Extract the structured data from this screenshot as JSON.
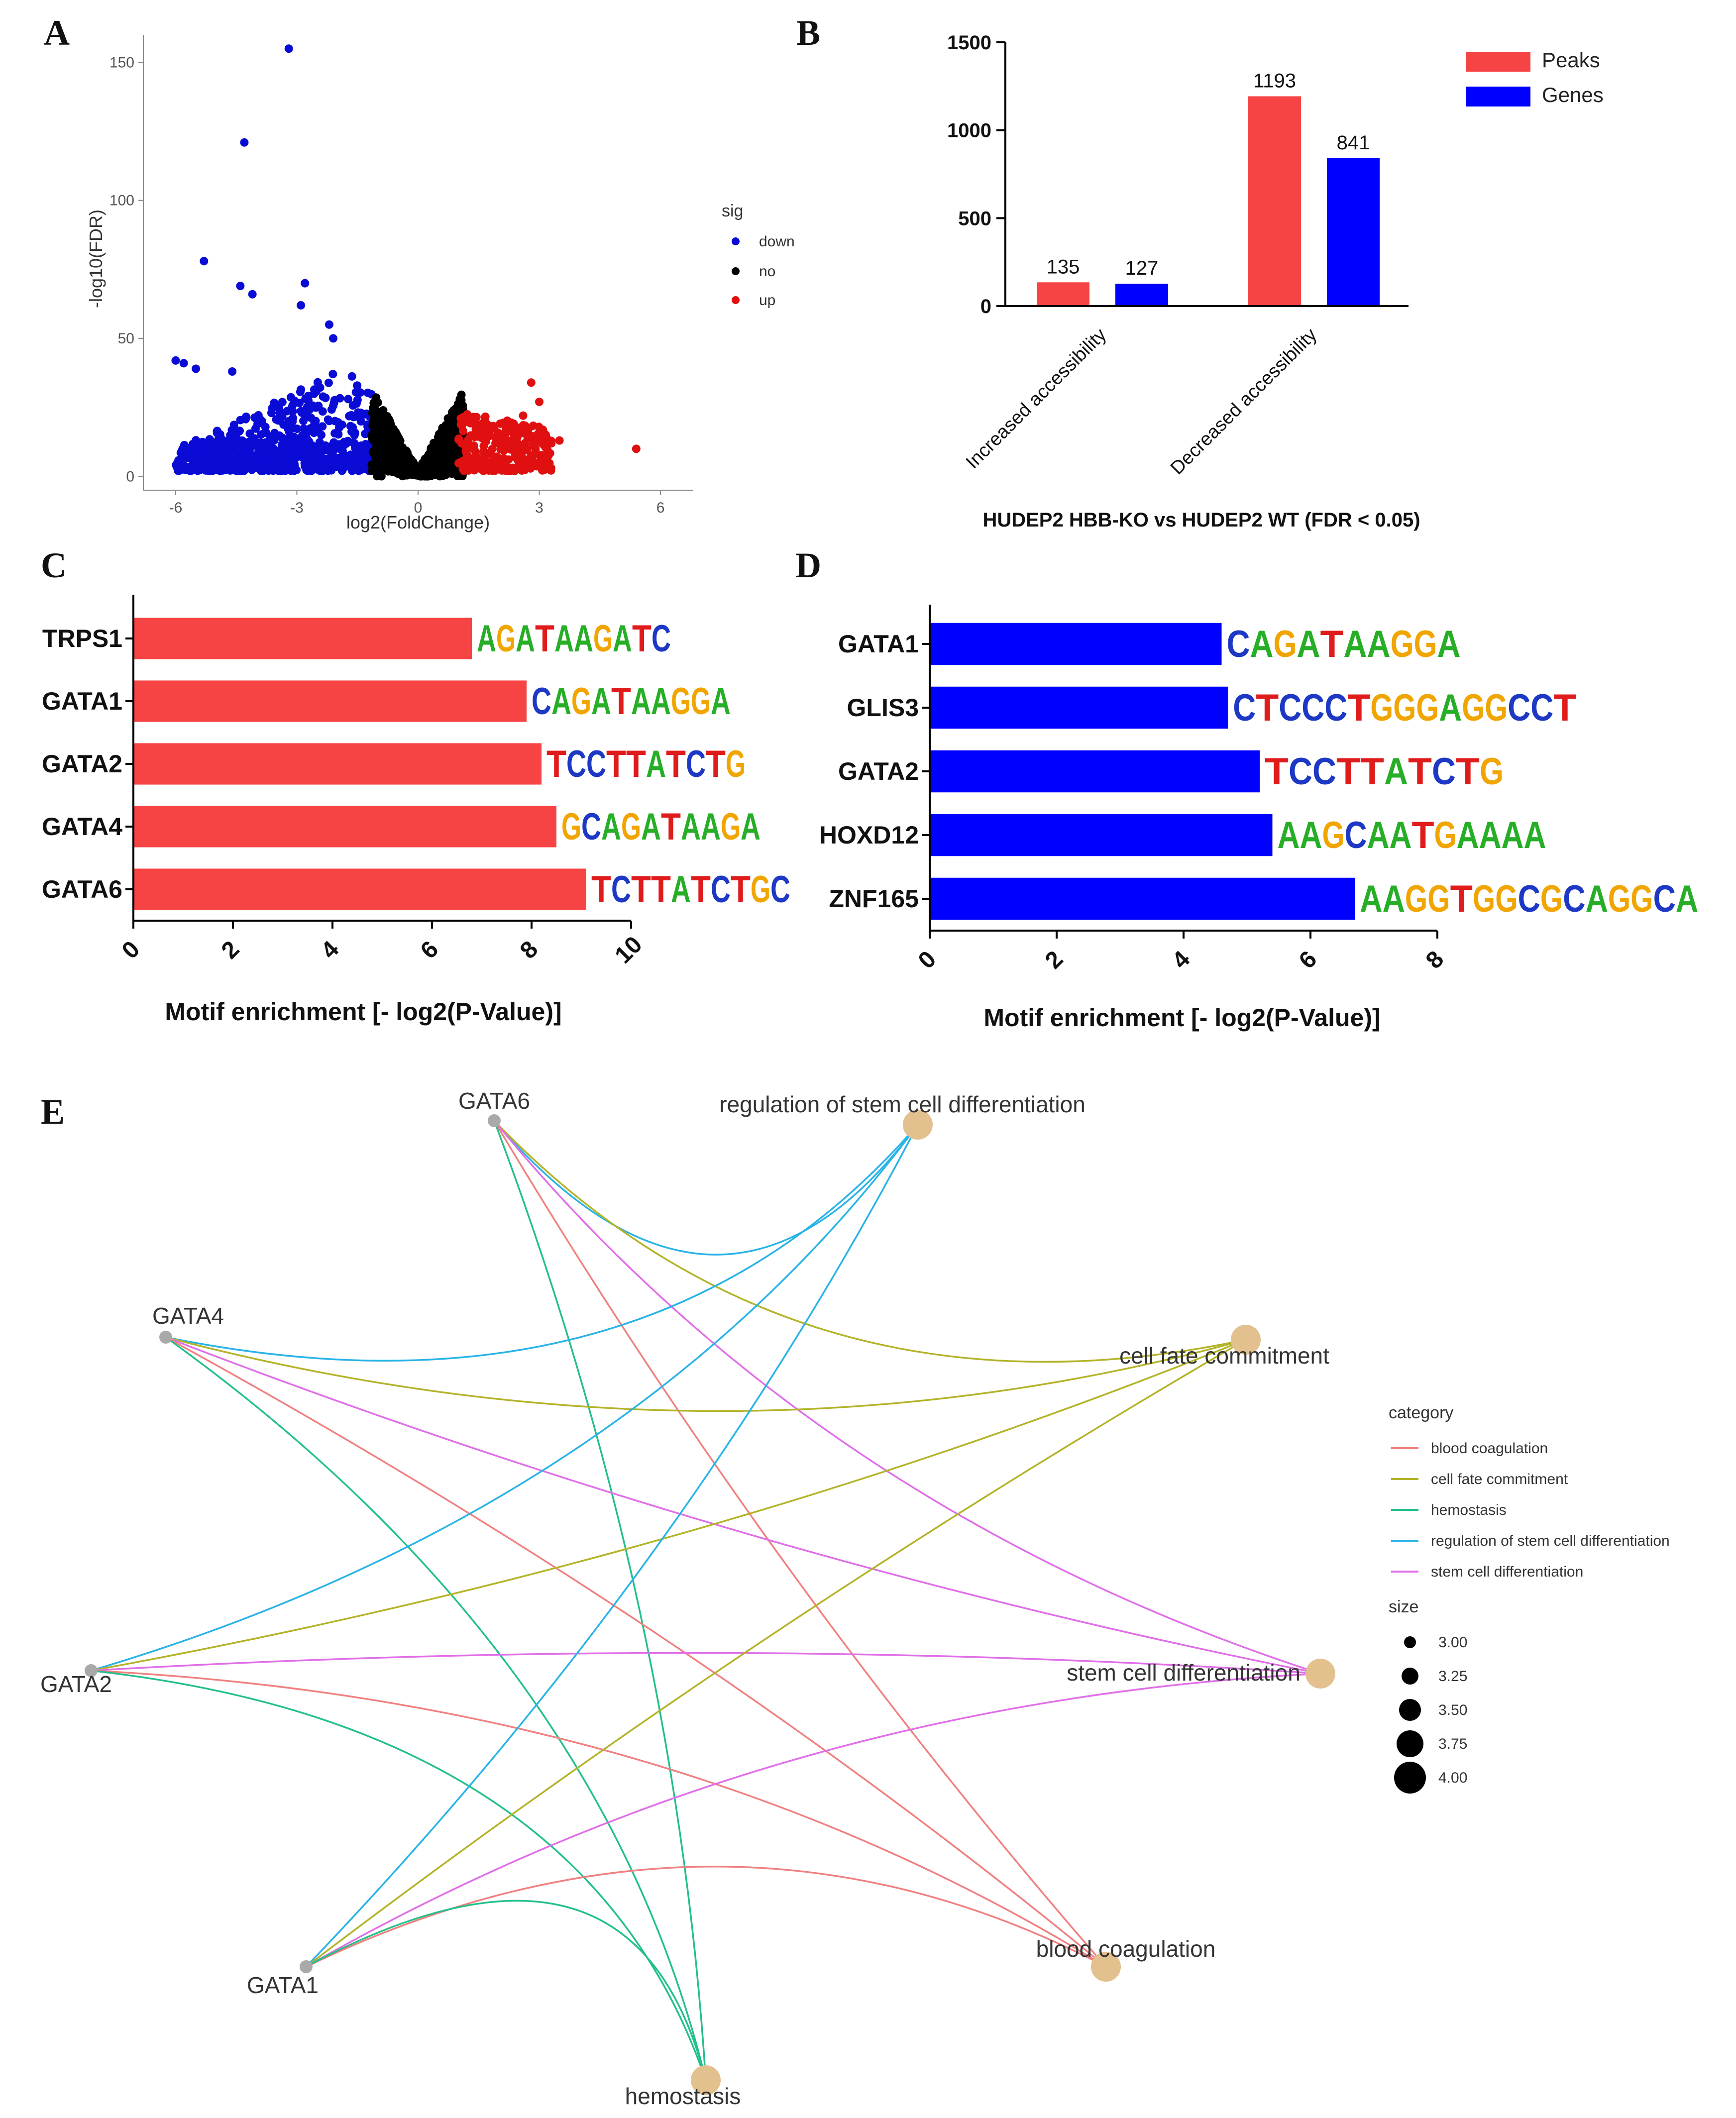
{
  "panels": [
    "A",
    "B",
    "C",
    "D",
    "E"
  ],
  "colors": {
    "down": "#0b0bd6",
    "no": "#000000",
    "up": "#e01010",
    "peaks": "#f64343",
    "genes": "#0000ff",
    "motifA": "#27ae27",
    "motifC": "#1d38c4",
    "motifG": "#f0a500",
    "motifT": "#e01b1b"
  },
  "chart_data": [
    {
      "panel": "A",
      "type": "scatter",
      "title": "",
      "xlabel": "log2(FoldChange)",
      "ylabel": "-log10(FDR)",
      "xlim": [
        -6.8,
        6.8
      ],
      "ylim": [
        -5,
        160
      ],
      "xticks": [
        -6,
        -3,
        0,
        3,
        6
      ],
      "xtick_labels": [
        "-6",
        "-3",
        "0",
        "3",
        "6"
      ],
      "yticks": [
        0,
        50,
        100,
        150
      ],
      "ytick_labels": [
        "0",
        "50",
        "100",
        "150"
      ],
      "legend_title": "sig",
      "legend": [
        {
          "name": "down",
          "color": "#0b0bd6"
        },
        {
          "name": "no",
          "color": "#000000"
        },
        {
          "name": "up",
          "color": "#e01010"
        }
      ],
      "points": {
        "down_outliers": [
          [
            -3.2,
            155
          ],
          [
            -4.3,
            121
          ],
          [
            -5.3,
            78
          ],
          [
            -4.4,
            69
          ],
          [
            -2.8,
            70
          ],
          [
            -4.1,
            66
          ],
          [
            -2.9,
            62
          ],
          [
            -5.8,
            41
          ],
          [
            -5.5,
            39
          ],
          [
            -6.0,
            42
          ],
          [
            -4.6,
            38
          ],
          [
            -2.2,
            55
          ],
          [
            -2.1,
            50
          ]
        ],
        "up_outliers": [
          [
            5.4,
            10
          ],
          [
            2.8,
            34
          ],
          [
            3.0,
            27
          ],
          [
            3.2,
            13
          ],
          [
            3.3,
            12
          ],
          [
            3.5,
            13
          ],
          [
            2.6,
            22
          ],
          [
            2.2,
            20
          ]
        ]
      }
    },
    {
      "panel": "B",
      "type": "bar",
      "title": "HUDEP2 HBB-KO vs HUDEP2 WT (FDR < 0.05)",
      "categories": [
        "Increased accessibility",
        "Decreased accessibility"
      ],
      "series": [
        {
          "name": "Peaks",
          "color": "#f64343",
          "values": [
            135,
            1193
          ]
        },
        {
          "name": "Genes",
          "color": "#0000ff",
          "values": [
            127,
            841
          ]
        }
      ],
      "value_labels": [
        "135",
        "127",
        "1193",
        "841"
      ],
      "ylim": [
        0,
        1500
      ],
      "yticks": [
        0,
        500,
        1000,
        1500
      ],
      "ytick_labels": [
        "0",
        "500",
        "1000",
        "1500"
      ]
    },
    {
      "panel": "C",
      "type": "bar",
      "orientation": "horizontal",
      "xlabel": "Motif enrichment [- log2(P-Value)]",
      "categories": [
        "TRPS1",
        "GATA1",
        "GATA2",
        "GATA4",
        "GATA6"
      ],
      "values": [
        6.8,
        7.9,
        8.2,
        8.5,
        9.1
      ],
      "motifs": [
        "AGATAAGATC",
        "CAGATAAGGA",
        "TCCTTATCTG",
        "GCAGATAAGA",
        "TCTTATCTGC"
      ],
      "xlim": [
        0,
        10
      ],
      "xticks": [
        0,
        2,
        4,
        6,
        8,
        10
      ],
      "xtick_labels": [
        "0",
        "2",
        "4",
        "6",
        "8",
        "10"
      ],
      "color": "#f64343"
    },
    {
      "panel": "D",
      "type": "bar",
      "orientation": "horizontal",
      "xlabel": "Motif enrichment [- log2(P-Value)]",
      "categories": [
        "GATA1",
        "GLIS3",
        "GATA2",
        "HOXD12",
        "ZNF165"
      ],
      "values": [
        4.6,
        4.7,
        5.2,
        5.4,
        6.7
      ],
      "motifs": [
        "CAGATAAGGA",
        "CTCCCTGGGAGGCCT",
        "TCCTTATCTG",
        "AAGCAATGAAAA",
        "AAGGTGGCGCAGGCA"
      ],
      "xlim": [
        0,
        8
      ],
      "xticks": [
        0,
        2,
        4,
        6,
        8
      ],
      "xtick_labels": [
        "0",
        "2",
        "4",
        "6",
        "8"
      ],
      "color": "#0000ff"
    },
    {
      "panel": "E",
      "type": "network",
      "gene_nodes": [
        "GATA6",
        "GATA4",
        "GATA2",
        "GATA1"
      ],
      "category_nodes": [
        {
          "name": "regulation of stem cell differentiation",
          "size": 4.0
        },
        {
          "name": "cell fate commitment",
          "size": 4.0
        },
        {
          "name": "stem cell differentiation",
          "size": 4.0
        },
        {
          "name": "blood coagulation",
          "size": 4.0
        },
        {
          "name": "hemostasis",
          "size": 4.0
        }
      ],
      "edges": [
        {
          "gene": "GATA6",
          "category": "regulation of stem cell differentiation"
        },
        {
          "gene": "GATA6",
          "category": "cell fate commitment"
        },
        {
          "gene": "GATA6",
          "category": "stem cell differentiation"
        },
        {
          "gene": "GATA6",
          "category": "blood coagulation"
        },
        {
          "gene": "GATA6",
          "category": "hemostasis"
        },
        {
          "gene": "GATA4",
          "category": "regulation of stem cell differentiation"
        },
        {
          "gene": "GATA4",
          "category": "cell fate commitment"
        },
        {
          "gene": "GATA4",
          "category": "stem cell differentiation"
        },
        {
          "gene": "GATA4",
          "category": "blood coagulation"
        },
        {
          "gene": "GATA4",
          "category": "hemostasis"
        },
        {
          "gene": "GATA2",
          "category": "regulation of stem cell differentiation"
        },
        {
          "gene": "GATA2",
          "category": "cell fate commitment"
        },
        {
          "gene": "GATA2",
          "category": "stem cell differentiation"
        },
        {
          "gene": "GATA2",
          "category": "blood coagulation"
        },
        {
          "gene": "GATA2",
          "category": "hemostasis"
        },
        {
          "gene": "GATA1",
          "category": "regulation of stem cell differentiation"
        },
        {
          "gene": "GATA1",
          "category": "cell fate commitment"
        },
        {
          "gene": "GATA1",
          "category": "stem cell differentiation"
        },
        {
          "gene": "GATA1",
          "category": "blood coagulation"
        },
        {
          "gene": "GATA1",
          "category": "hemostasis"
        }
      ],
      "legend_title": "category",
      "legend": [
        {
          "name": "blood coagulation",
          "color": "#f08080"
        },
        {
          "name": "cell fate commitment",
          "color": "#b3b329"
        },
        {
          "name": "hemostasis",
          "color": "#22c08a"
        },
        {
          "name": "regulation of stem cell differentiation",
          "color": "#29b3e6"
        },
        {
          "name": "stem cell differentiation",
          "color": "#e06ee8"
        }
      ],
      "size_legend_title": "size",
      "size_legend": [
        "3.00",
        "3.25",
        "3.50",
        "3.75",
        "4.00"
      ],
      "size_values": [
        3.0,
        3.25,
        3.5,
        3.75,
        4.0
      ]
    }
  ]
}
